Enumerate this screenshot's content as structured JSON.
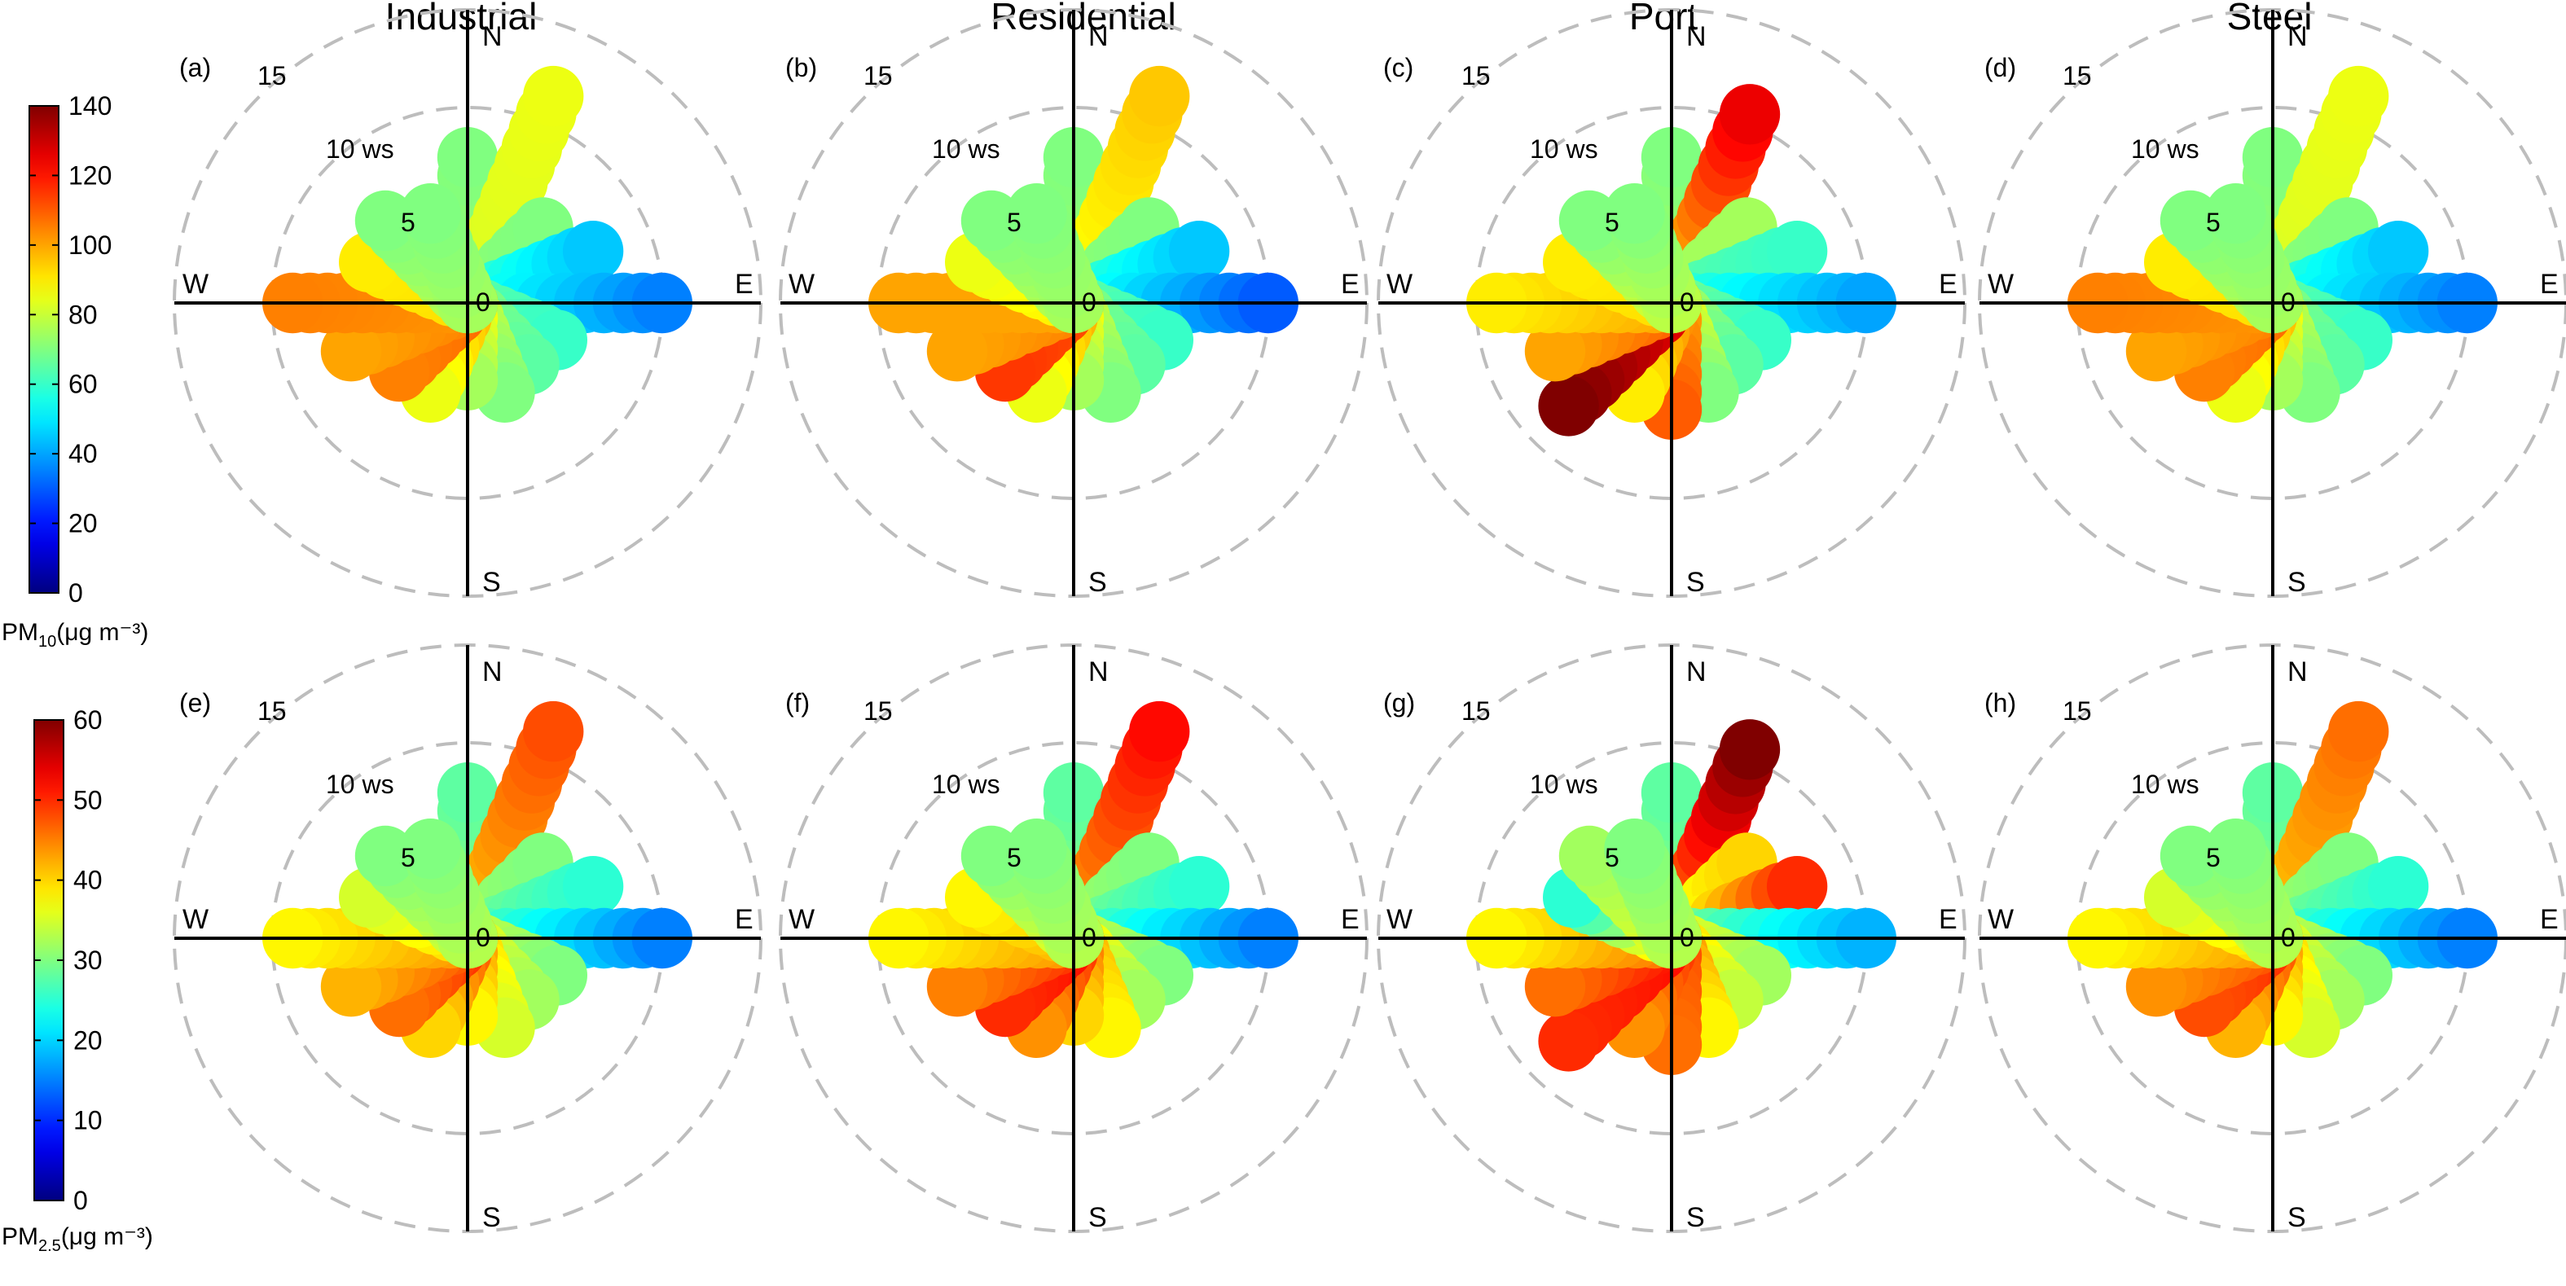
{
  "columns": [
    "Industrial",
    "Residential",
    "Port",
    "Steel"
  ],
  "colorbars": [
    {
      "label_main": "PM",
      "label_sub": "10",
      "label_unit": "(μg m⁻³)",
      "min": 0,
      "max": 140,
      "ticks": [
        "0",
        "20",
        "40",
        "60",
        "80",
        "100",
        "120",
        "140"
      ]
    },
    {
      "label_main": "PM",
      "label_sub": "2.5",
      "label_unit": "(μg m⁻³)",
      "min": 0,
      "max": 60,
      "ticks": [
        "0",
        "10",
        "20",
        "30",
        "40",
        "50",
        "60"
      ]
    }
  ],
  "compass": {
    "N": "N",
    "E": "E",
    "S": "S",
    "W": "W"
  },
  "ring_labels": [
    "0",
    "5",
    "10 ws",
    "15"
  ],
  "chart_data": {
    "type": "polar_plot",
    "radial_axis": {
      "label": "ws",
      "rings": [
        5,
        10,
        15
      ],
      "max": 15
    },
    "angles_deg": [
      0,
      22.5,
      45,
      67.5,
      90,
      112.5,
      135,
      157.5,
      180,
      202.5,
      225,
      247.5,
      270,
      292.5,
      315,
      337.5
    ],
    "panels": [
      {
        "tag": "(a)",
        "site": "Industrial",
        "pollutant": "PM10",
        "radial_extent": [
          9.0,
          13.0,
          7.0,
          8.5,
          11.5,
          6.5,
          6.0,
          6.5,
          5.5,
          6.5,
          6.5,
          8.0,
          10.5,
          7.0,
          7.5,
          6.5
        ],
        "far_value": [
          70,
          85,
          70,
          45,
          35,
          60,
          65,
          70,
          75,
          85,
          105,
          100,
          105,
          90,
          70,
          70
        ],
        "core_value": [
          75,
          82,
          72,
          62,
          58,
          65,
          70,
          80,
          88,
          98,
          108,
          105,
          102,
          92,
          78,
          75
        ]
      },
      {
        "tag": "(b)",
        "site": "Residential",
        "pollutant": "PM10",
        "radial_extent": [
          9.0,
          13.0,
          7.0,
          8.5,
          11.5,
          6.5,
          6.0,
          6.5,
          5.5,
          6.5,
          6.5,
          8.0,
          10.5,
          7.0,
          7.5,
          6.5
        ],
        "far_value": [
          70,
          95,
          70,
          45,
          30,
          60,
          65,
          70,
          75,
          85,
          115,
          100,
          100,
          85,
          70,
          70
        ],
        "core_value": [
          75,
          85,
          72,
          62,
          58,
          65,
          70,
          80,
          88,
          100,
          112,
          105,
          100,
          90,
          78,
          75
        ]
      },
      {
        "tag": "(c)",
        "site": "Port",
        "pollutant": "PM10",
        "radial_extent": [
          9.0,
          12.0,
          7.0,
          8.5,
          11.5,
          6.5,
          6.0,
          6.5,
          7.0,
          6.5,
          9.0,
          8.0,
          10.5,
          7.0,
          7.5,
          6.5
        ],
        "far_value": [
          70,
          125,
          75,
          60,
          40,
          60,
          65,
          70,
          110,
          90,
          140,
          100,
          90,
          90,
          70,
          70
        ],
        "core_value": [
          78,
          90,
          75,
          65,
          60,
          68,
          75,
          85,
          100,
          105,
          125,
          110,
          100,
          92,
          82,
          78
        ]
      },
      {
        "tag": "(d)",
        "site": "Steel",
        "pollutant": "PM10",
        "radial_extent": [
          9.0,
          13.0,
          7.0,
          8.5,
          11.5,
          6.5,
          6.0,
          6.5,
          5.5,
          6.5,
          6.5,
          8.0,
          10.5,
          7.0,
          7.5,
          6.5
        ],
        "far_value": [
          70,
          85,
          70,
          45,
          35,
          60,
          65,
          70,
          75,
          85,
          105,
          100,
          105,
          90,
          70,
          70
        ],
        "core_value": [
          75,
          82,
          72,
          62,
          58,
          65,
          70,
          80,
          88,
          98,
          108,
          105,
          102,
          92,
          78,
          75
        ]
      },
      {
        "tag": "(e)",
        "site": "Industrial",
        "pollutant": "PM2.5",
        "radial_extent": [
          9.0,
          13.0,
          7.0,
          8.5,
          11.5,
          6.5,
          6.0,
          6.5,
          5.5,
          6.5,
          6.5,
          8.0,
          10.5,
          7.0,
          7.5,
          6.5
        ],
        "far_value": [
          28,
          48,
          30,
          25,
          15,
          30,
          32,
          35,
          38,
          40,
          46,
          42,
          38,
          35,
          30,
          30
        ],
        "core_value": [
          32,
          40,
          32,
          30,
          28,
          34,
          36,
          40,
          44,
          48,
          50,
          48,
          44,
          40,
          35,
          33
        ]
      },
      {
        "tag": "(f)",
        "site": "Residential",
        "pollutant": "PM2.5",
        "radial_extent": [
          9.0,
          13.0,
          7.0,
          8.5,
          11.5,
          6.5,
          6.0,
          6.5,
          5.5,
          6.5,
          6.5,
          8.0,
          10.5,
          7.0,
          7.5,
          6.5
        ],
        "far_value": [
          28,
          52,
          30,
          25,
          15,
          30,
          32,
          38,
          40,
          44,
          50,
          45,
          38,
          38,
          30,
          30
        ],
        "core_value": [
          32,
          42,
          32,
          30,
          28,
          34,
          38,
          42,
          46,
          50,
          52,
          50,
          44,
          42,
          36,
          33
        ]
      },
      {
        "tag": "(g)",
        "site": "Port",
        "pollutant": "PM2.5",
        "radial_extent": [
          9.0,
          12.0,
          7.0,
          8.5,
          11.5,
          6.5,
          6.0,
          6.5,
          7.0,
          6.5,
          9.0,
          8.0,
          10.5,
          7.0,
          7.5,
          6.5
        ],
        "far_value": [
          28,
          60,
          40,
          50,
          18,
          32,
          34,
          38,
          46,
          44,
          50,
          46,
          38,
          25,
          32,
          30
        ],
        "core_value": [
          32,
          42,
          36,
          34,
          30,
          36,
          40,
          44,
          48,
          50,
          52,
          52,
          46,
          40,
          36,
          33
        ]
      },
      {
        "tag": "(h)",
        "site": "Steel",
        "pollutant": "PM2.5",
        "radial_extent": [
          9.0,
          13.0,
          7.0,
          8.5,
          11.5,
          6.5,
          6.0,
          6.5,
          5.5,
          6.5,
          6.5,
          8.0,
          10.5,
          7.0,
          7.5,
          6.5
        ],
        "far_value": [
          28,
          46,
          30,
          25,
          15,
          30,
          32,
          35,
          38,
          42,
          48,
          44,
          38,
          35,
          30,
          30
        ],
        "core_value": [
          32,
          40,
          32,
          30,
          28,
          34,
          36,
          40,
          44,
          48,
          50,
          48,
          44,
          40,
          35,
          33
        ]
      }
    ]
  }
}
